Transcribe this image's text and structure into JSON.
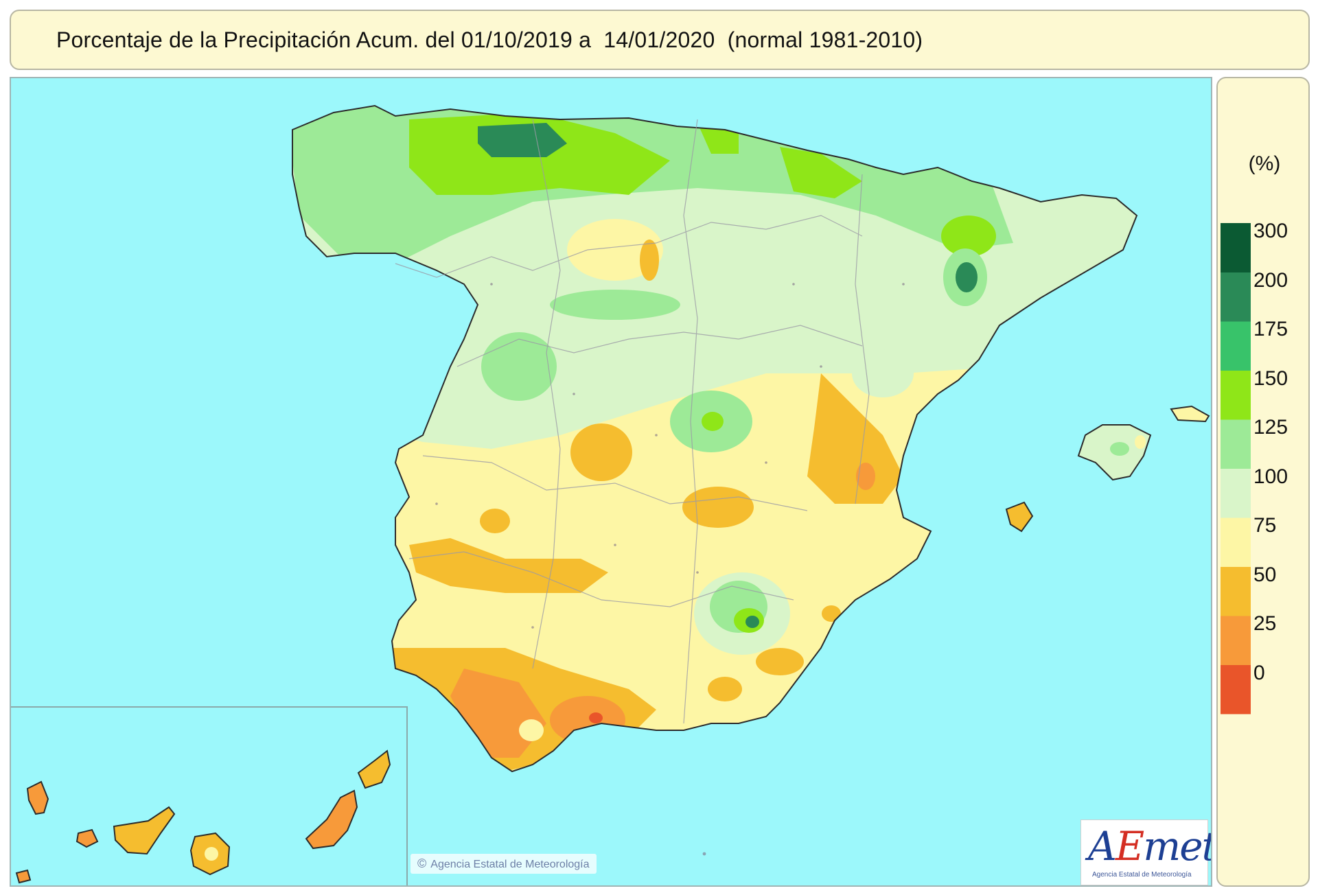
{
  "title": "Porcentaje de la Precipitación Acum. del 01/10/2019 a  14/01/2020  (normal 1981-2010)",
  "legend": {
    "unit": "(%)",
    "labels": [
      "300",
      "200",
      "175",
      "150",
      "125",
      "100",
      "75",
      "50",
      "25",
      "0"
    ],
    "classes": [
      {
        "color": "#e9552a"
      },
      {
        "color": "#f79a3a"
      },
      {
        "color": "#f5bd2f"
      },
      {
        "color": "#fdf6a5"
      },
      {
        "color": "#d9f5c9"
      },
      {
        "color": "#9dea97"
      },
      {
        "color": "#8fe618"
      },
      {
        "color": "#38c36a"
      },
      {
        "color": "#2a8a57"
      },
      {
        "color": "#0b5a33"
      }
    ]
  },
  "map": {
    "sea_color": "#9cf8fb",
    "colors": {
      "high": "#2a8a57",
      "green": "#8fe618",
      "light_green": "#9dea97",
      "pale_green": "#d9f5c9",
      "yellow": "#fdf6a5",
      "orange": "#f5bd2f",
      "dark_orange": "#f79a3a",
      "red": "#e9552a"
    }
  },
  "credit": "Agencia Estatal de Meteorología",
  "logo": {
    "text_a": "A",
    "text_e": "E",
    "text_rest": "met",
    "subtitle": "Agencia Estatal de Meteorología"
  }
}
